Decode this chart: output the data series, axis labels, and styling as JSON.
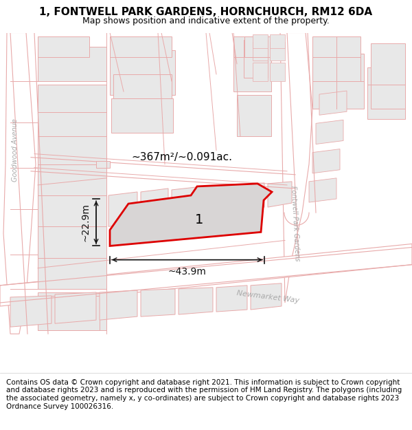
{
  "title_line1": "1, FONTWELL PARK GARDENS, HORNCHURCH, RM12 6DA",
  "title_line2": "Map shows position and indicative extent of the property.",
  "footer_text": "Contains OS data © Crown copyright and database right 2021. This information is subject to Crown copyright and database rights 2023 and is reproduced with the permission of HM Land Registry. The polygons (including the associated geometry, namely x, y co-ordinates) are subject to Crown copyright and database rights 2023 Ordnance Survey 100026316.",
  "area_label": "~367m²/~0.091ac.",
  "width_label": "~43.9m",
  "height_label": "~22.9m",
  "plot_number": "1",
  "map_bg": "#ffffff",
  "bld_fill": "#e8e8e8",
  "bld_edge": "#e8aaaa",
  "road_edge": "#e8aaaa",
  "plot_fill": "#d8d5d5",
  "plot_edge": "#dd0000",
  "street_color": "#aaaaaa",
  "dim_color": "#111111",
  "title_fontsize": 11,
  "subtitle_fontsize": 9,
  "footer_fontsize": 7.5,
  "street_name_fpg": "Fontwell Park Gardens",
  "street_name_nw": "Newmarket Way",
  "street_name_ga": "Goodwood Avenue"
}
